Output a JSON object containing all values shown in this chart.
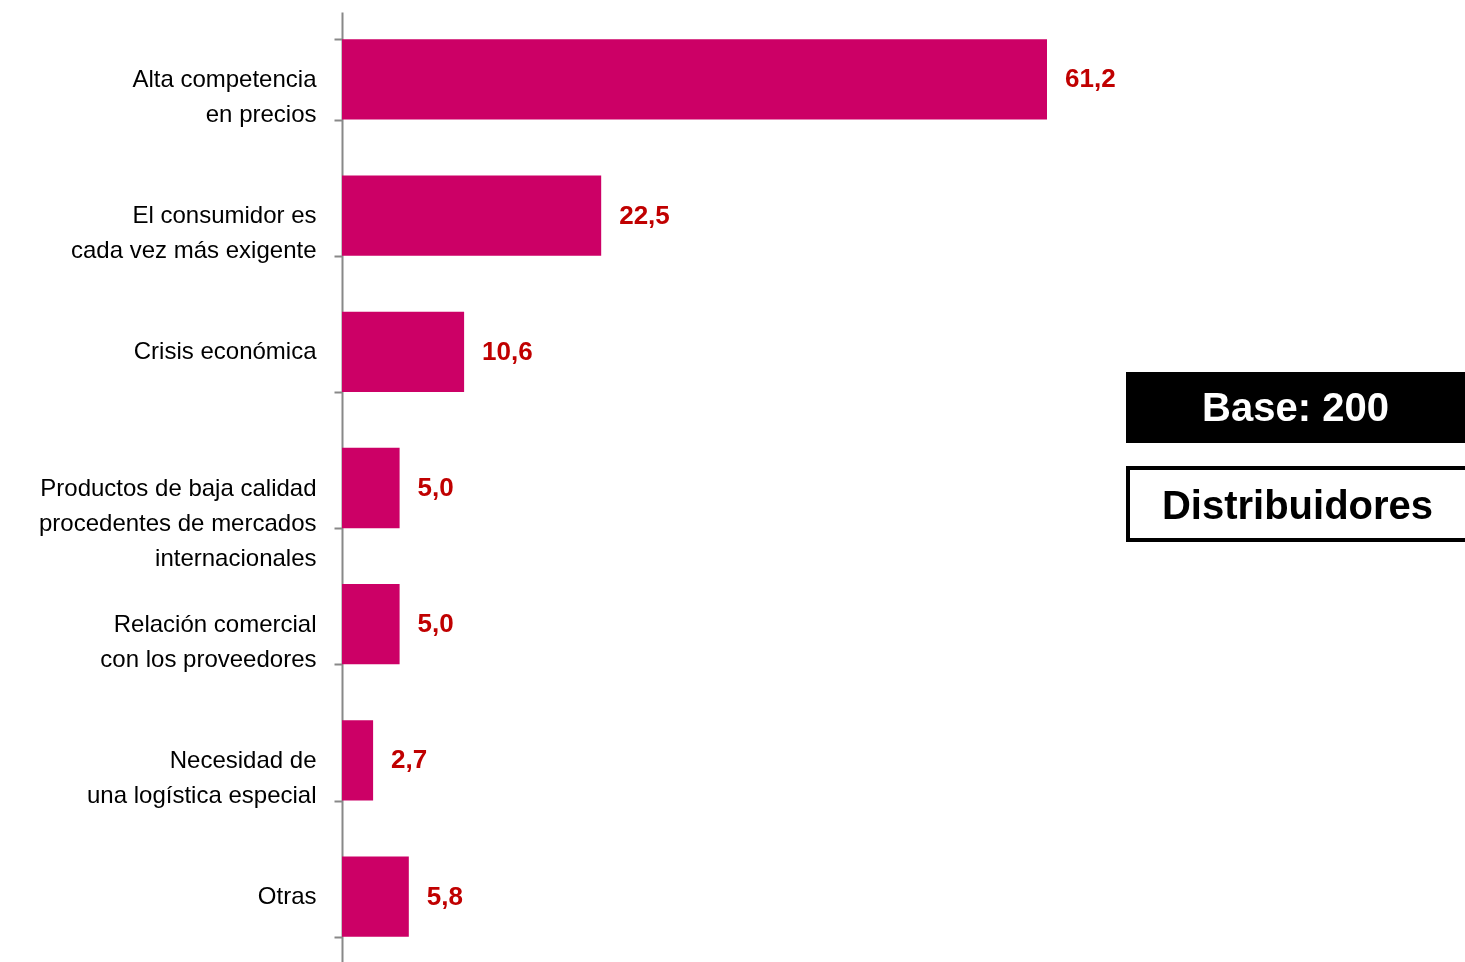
{
  "chart_data": {
    "type": "bar",
    "orientation": "horizontal",
    "categories": [
      "Alta competencia\nen precios",
      "El consumidor es\ncada vez más exigente",
      "Crisis económica",
      "Productos de baja calidad\nprocedentes de mercados\ninternacionales",
      "Relación comercial\ncon los proveedores",
      "Necesidad de\nuna logística especial",
      "Otras"
    ],
    "values": [
      61.2,
      22.5,
      10.6,
      5.0,
      5.0,
      2.7,
      5.8
    ],
    "value_labels": [
      "61,2",
      "22,5",
      "10,6",
      "5,0",
      "5,0",
      "2,7",
      "5,8"
    ],
    "color": "#cc0066",
    "annotations": [
      "Base: 200",
      "Distribuidores"
    ]
  }
}
